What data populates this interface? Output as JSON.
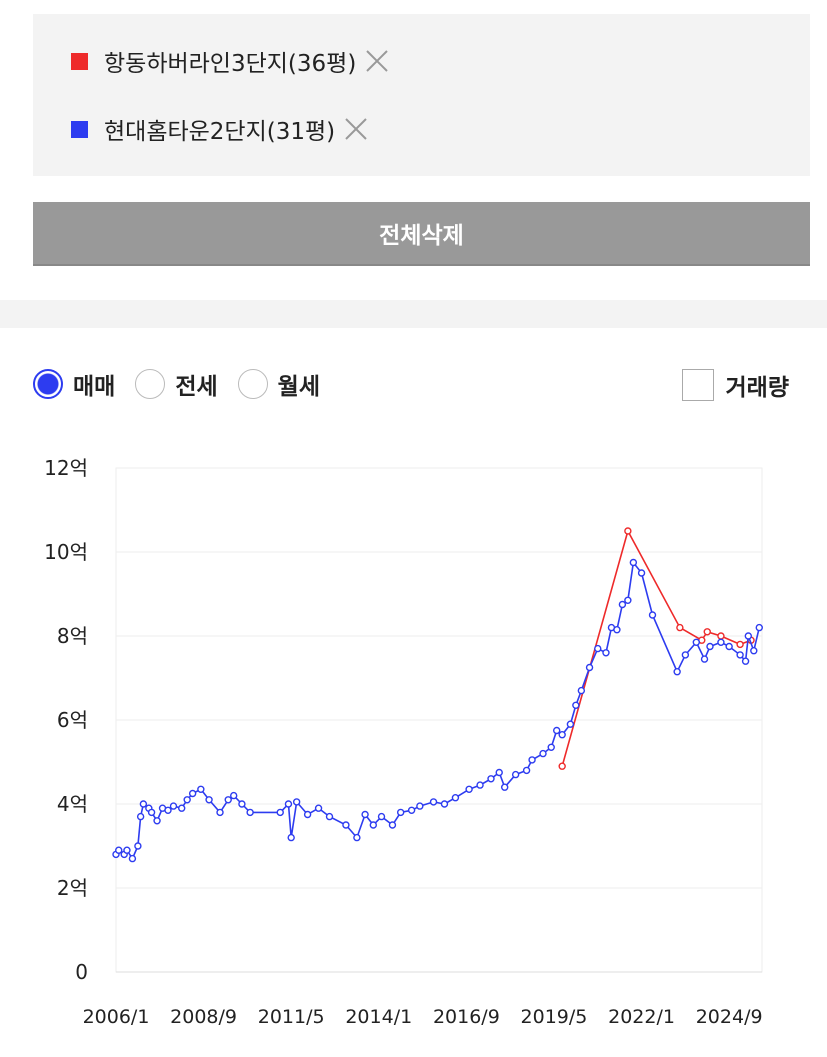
{
  "delete_button": "전체삭제",
  "deal_types": {
    "options": [
      "매매",
      "전세",
      "월세"
    ],
    "selected": 0
  },
  "volume_checkbox": "거래량",
  "chart_data": {
    "type": "line",
    "xlim": [
      "2006/1",
      "2025/9"
    ],
    "xticks": [
      "2006/1",
      "2008/9",
      "2011/5",
      "2014/1",
      "2016/9",
      "2019/5",
      "2022/1",
      "2024/9"
    ],
    "ylim": [
      0,
      12
    ],
    "yticks": [
      0,
      {
        "value": 2,
        "label": "2억"
      },
      {
        "value": 4,
        "label": "4억"
      },
      {
        "value": 6,
        "label": "6억"
      },
      {
        "value": 8,
        "label": "8억"
      },
      {
        "value": 10,
        "label": "10억"
      },
      {
        "value": 12,
        "label": "12억"
      }
    ],
    "grid": true,
    "series": [
      {
        "name": "항동하버라인3단지(36평)",
        "color": "#ee2a2a",
        "x": [
          "2019/8",
          "2021/8",
          "2023/3",
          "2023/11",
          "2024/1",
          "2024/6",
          "2025/1",
          "2025/5"
        ],
        "values": [
          4.9,
          10.5,
          8.2,
          7.9,
          8.1,
          8.0,
          7.8,
          7.9
        ]
      },
      {
        "name": "현대홈타운2단지(31평)",
        "color": "#2d3cf0",
        "x": [
          "2006/1",
          "2006/2",
          "2006/4",
          "2006/5",
          "2006/7",
          "2006/9",
          "2006/10",
          "2006/11",
          "2007/1",
          "2007/2",
          "2007/4",
          "2007/6",
          "2007/8",
          "2007/10",
          "2008/1",
          "2008/3",
          "2008/5",
          "2008/8",
          "2008/11",
          "2009/3",
          "2009/6",
          "2009/8",
          "2009/11",
          "2010/2",
          "2011/1",
          "2011/4",
          "2011/5",
          "2011/7",
          "2011/11",
          "2012/3",
          "2012/7",
          "2013/1",
          "2013/5",
          "2013/8",
          "2013/11",
          "2014/2",
          "2014/6",
          "2014/9",
          "2015/1",
          "2015/4",
          "2015/9",
          "2016/1",
          "2016/5",
          "2016/10",
          "2017/2",
          "2017/6",
          "2017/9",
          "2017/11",
          "2018/3",
          "2018/7",
          "2018/9",
          "2019/1",
          "2019/4",
          "2019/6",
          "2019/8",
          "2019/11",
          "2020/1",
          "2020/3",
          "2020/6",
          "2020/9",
          "2020/12",
          "2021/2",
          "2021/4",
          "2021/6",
          "2021/8",
          "2021/10",
          "2022/1",
          "2022/5",
          "2023/2",
          "2023/5",
          "2023/9",
          "2023/12",
          "2024/2",
          "2024/6",
          "2024/9",
          "2025/1",
          "2025/3",
          "2025/4",
          "2025/6",
          "2025/8"
        ],
        "values": [
          2.8,
          2.9,
          2.8,
          2.9,
          2.7,
          3.0,
          3.7,
          4.0,
          3.9,
          3.8,
          3.6,
          3.9,
          3.85,
          3.95,
          3.9,
          4.1,
          4.25,
          4.35,
          4.1,
          3.8,
          4.1,
          4.2,
          4.0,
          3.8,
          3.8,
          4.0,
          3.2,
          4.05,
          3.75,
          3.9,
          3.7,
          3.5,
          3.2,
          3.75,
          3.5,
          3.7,
          3.5,
          3.8,
          3.85,
          3.95,
          4.05,
          4.0,
          4.15,
          4.35,
          4.45,
          4.6,
          4.75,
          4.4,
          4.7,
          4.8,
          5.05,
          5.2,
          5.35,
          5.75,
          5.65,
          5.9,
          6.35,
          6.7,
          7.25,
          7.7,
          7.6,
          8.2,
          8.15,
          8.75,
          8.85,
          9.75,
          9.5,
          8.5,
          7.15,
          7.55,
          7.85,
          7.45,
          7.75,
          7.85,
          7.75,
          7.55,
          7.4,
          8.0,
          7.65,
          8.2
        ]
      }
    ]
  }
}
